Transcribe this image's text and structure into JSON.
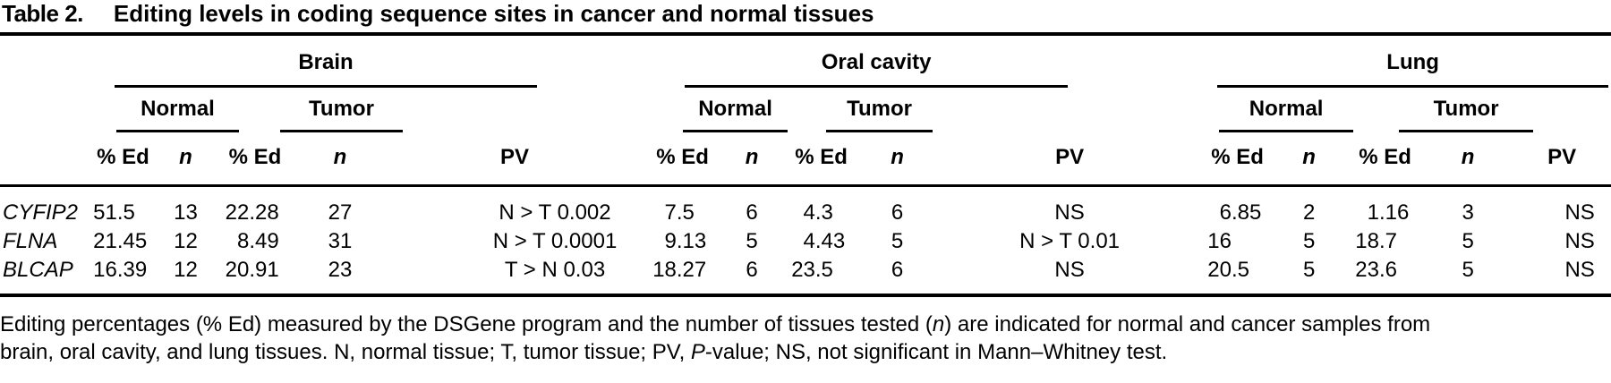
{
  "title": {
    "label": "Table 2.",
    "text": "Editing levels in coding sequence sites in cancer and normal tissues"
  },
  "header": {
    "tissues": [
      "Brain",
      "Oral cavity",
      "Lung"
    ],
    "subgroups": [
      "Normal",
      "Tumor"
    ],
    "measures": {
      "ed": "% Ed",
      "n": "n",
      "pv": "PV"
    }
  },
  "rows": [
    {
      "gene": "CYFIP2",
      "brain": {
        "normal": {
          "ed": "51.5",
          "n": "13"
        },
        "tumor": {
          "ed": "22.28",
          "n": "27"
        },
        "pv": "N > T 0.002"
      },
      "oral": {
        "normal": {
          "ed": "7.5",
          "n": "6"
        },
        "tumor": {
          "ed": "4.3",
          "n": "6"
        },
        "pv": "NS"
      },
      "lung": {
        "normal": {
          "ed": "6.85",
          "n": "2"
        },
        "tumor": {
          "ed": "1.16",
          "n": "3"
        },
        "pv": "NS"
      }
    },
    {
      "gene": "FLNA",
      "brain": {
        "normal": {
          "ed": "21.45",
          "n": "12"
        },
        "tumor": {
          "ed": "8.49",
          "n": "31"
        },
        "pv": "N > T 0.0001"
      },
      "oral": {
        "normal": {
          "ed": "9.13",
          "n": "5"
        },
        "tumor": {
          "ed": "4.43",
          "n": "5"
        },
        "pv": "N > T 0.01"
      },
      "lung": {
        "normal": {
          "ed": "16",
          "n": "5"
        },
        "tumor": {
          "ed": "18.7",
          "n": "5"
        },
        "pv": "NS"
      }
    },
    {
      "gene": "BLCAP",
      "brain": {
        "normal": {
          "ed": "16.39",
          "n": "12"
        },
        "tumor": {
          "ed": "20.91",
          "n": "23"
        },
        "pv": "T > N 0.03"
      },
      "oral": {
        "normal": {
          "ed": "18.27",
          "n": "6"
        },
        "tumor": {
          "ed": "23.5",
          "n": "6"
        },
        "pv": "NS"
      },
      "lung": {
        "normal": {
          "ed": "20.5",
          "n": "5"
        },
        "tumor": {
          "ed": "23.6",
          "n": "5"
        },
        "pv": "NS"
      }
    }
  ],
  "footnote": {
    "line1_pre_n": "Editing percentages (% Ed) measured by the DSGene program and the number of tissues tested (",
    "line1_n": "n",
    "line1_post_n": ") are indicated for normal and cancer samples from",
    "line2_pre_p": "brain, oral cavity, and lung tissues. N, normal tissue; T, tumor tissue; PV, ",
    "line2_p": "P",
    "line2_post_p": "-value; NS, not significant in Mann–Whitney test."
  },
  "colors": {
    "text": "#000000",
    "rule": "#000000",
    "background": "#ffffff"
  }
}
